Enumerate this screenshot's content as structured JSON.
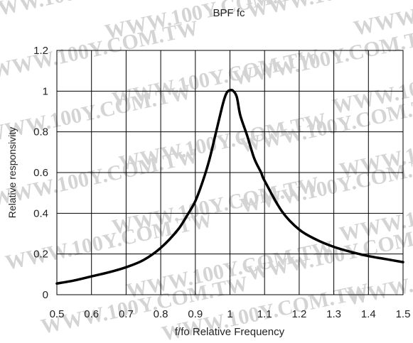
{
  "chart_data": {
    "type": "line",
    "title": "BPF fc",
    "xlabel": "f/fo Relative Frequency",
    "ylabel": "Relative responsivity",
    "xlim": [
      0.5,
      1.5
    ],
    "ylim": [
      0,
      1.2
    ],
    "xticks": [
      0.5,
      0.6,
      0.7,
      0.8,
      0.9,
      1.0,
      1.1,
      1.2,
      1.3,
      1.4,
      1.5
    ],
    "xtick_labels": [
      "0.5",
      "0.6",
      "0.7",
      "0.8",
      "0.9",
      "1",
      "1.1",
      "1.2",
      "1.3",
      "1.4",
      "1.5"
    ],
    "yticks": [
      0,
      0.2,
      0.4,
      0.6,
      0.8,
      1.0,
      1.2
    ],
    "ytick_labels": [
      "0",
      "0.2",
      "0.4",
      "0.6",
      "0.8",
      "1",
      "1.2"
    ],
    "grid": true,
    "line_color": "#000000",
    "series": [
      {
        "x": [
          0.5,
          0.55,
          0.6,
          0.65,
          0.7,
          0.75,
          0.8,
          0.85,
          0.88,
          0.9,
          0.92,
          0.94,
          0.96,
          0.98,
          0.99,
          1.0,
          1.01,
          1.02,
          1.03,
          1.05,
          1.07,
          1.09,
          1.1,
          1.15,
          1.2,
          1.25,
          1.3,
          1.35,
          1.4,
          1.45,
          1.5
        ],
        "y": [
          0.055,
          0.07,
          0.09,
          0.11,
          0.135,
          0.17,
          0.23,
          0.32,
          0.4,
          0.46,
          0.55,
          0.66,
          0.8,
          0.94,
          0.99,
          1.005,
          1.0,
          0.97,
          0.88,
          0.78,
          0.67,
          0.6,
          0.56,
          0.41,
          0.32,
          0.27,
          0.235,
          0.21,
          0.19,
          0.175,
          0.16
        ]
      }
    ]
  },
  "watermark": {
    "text": "WWW.100Y.COM.TW",
    "color": "#d4d4d4"
  }
}
